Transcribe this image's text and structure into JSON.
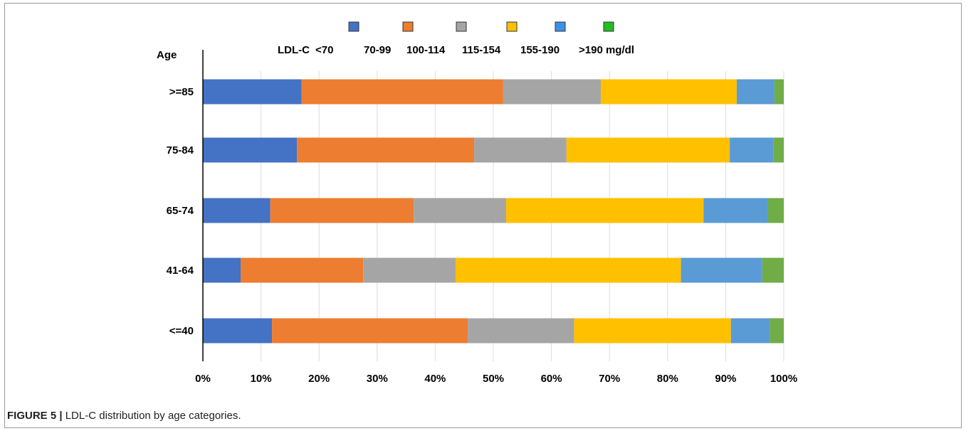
{
  "chart_data": {
    "type": "bar",
    "orientation": "horizontal",
    "stacked": true,
    "normalized": true,
    "categories": [
      ">=85",
      "75-84",
      "65-74",
      "41-64",
      "<=40"
    ],
    "y_axis_title": "Age",
    "legend_title": "LDL-C",
    "legend_placement": "top",
    "x_ticks": [
      "0%",
      "10%",
      "20%",
      "30%",
      "40%",
      "50%",
      "60%",
      "70%",
      "80%",
      "90%",
      "100%"
    ],
    "xlim": [
      0,
      100
    ],
    "grid": true,
    "series": [
      {
        "name": "<70",
        "color": "#4472C4",
        "values": [
          17.0,
          16.2,
          11.6,
          6.5,
          11.9
        ]
      },
      {
        "name": "70-99",
        "color": "#ED7D31",
        "values": [
          34.7,
          30.5,
          24.7,
          21.1,
          33.7
        ]
      },
      {
        "name": "100-114",
        "color": "#A5A5A5",
        "values": [
          16.8,
          15.9,
          15.9,
          15.9,
          18.3
        ]
      },
      {
        "name": "115-154",
        "color": "#FFC000",
        "values": [
          23.4,
          28.1,
          34.0,
          38.8,
          27.0
        ]
      },
      {
        "name": "155-190",
        "color": "#5B9BD5",
        "values": [
          6.5,
          7.5,
          11.1,
          14.0,
          6.7
        ]
      },
      {
        "name": ">190 mg/dl",
        "color": "#70AD47",
        "values": [
          1.6,
          1.8,
          2.7,
          3.7,
          2.4
        ]
      }
    ],
    "legend_swatch_colors": [
      "#4472C4",
      "#ED7D31",
      "#A5A5A5",
      "#FFC000",
      "#3C92E8",
      "#1FBF1F"
    ]
  },
  "caption": {
    "figure_label": "FIGURE 5 |",
    "text": " LDL-C distribution by age categories."
  },
  "colors": {
    "gridline": "#dcdcdc",
    "axis": "#000000",
    "frame": "#9a9a9a"
  }
}
